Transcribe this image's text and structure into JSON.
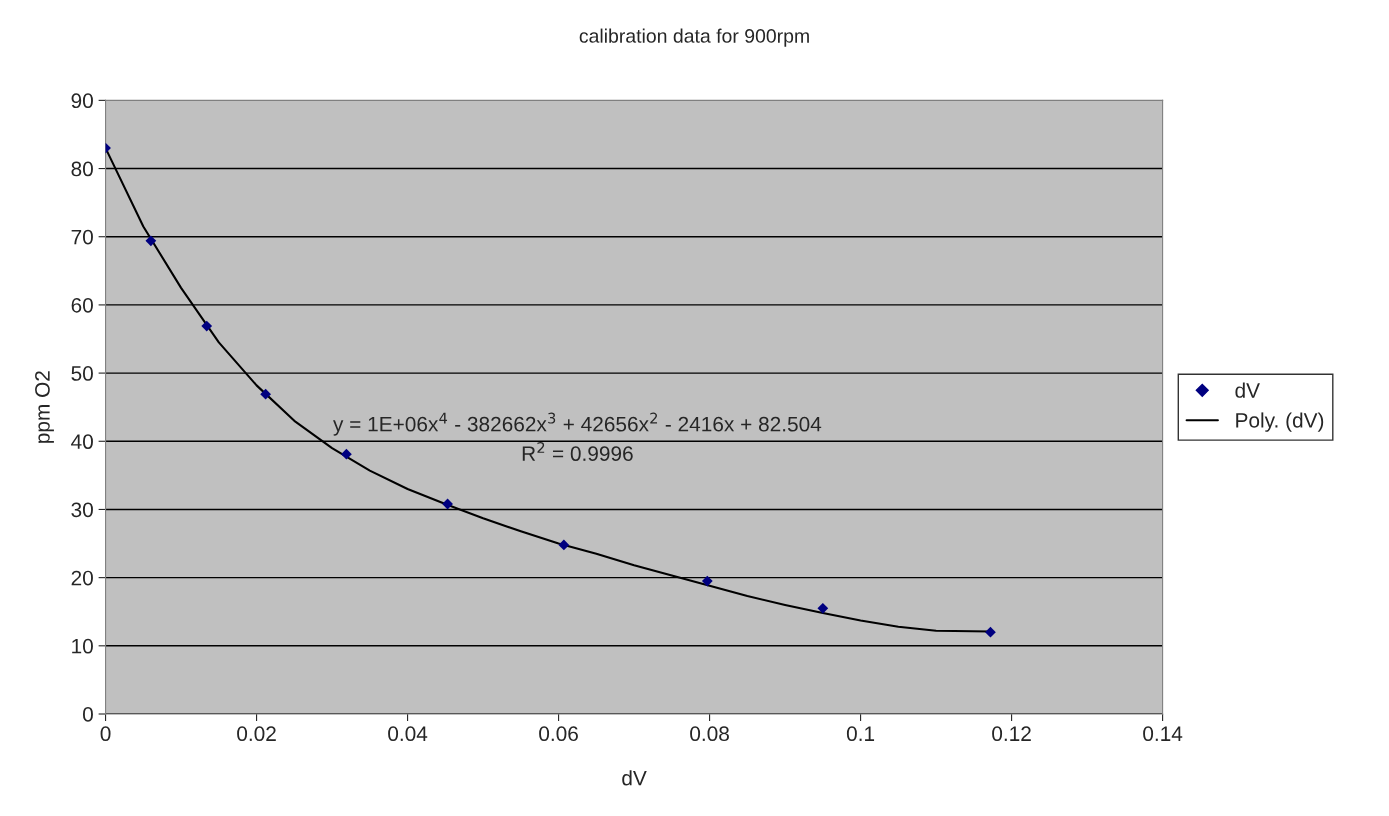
{
  "chart_data": {
    "type": "scatter",
    "title": "calibration data for 900rpm",
    "xlabel": "dV",
    "ylabel": "ppm O2",
    "xlim": [
      0,
      0.14
    ],
    "xticks": [
      0,
      0.02,
      0.04,
      0.06,
      0.08,
      0.1,
      0.12,
      0.14
    ],
    "ylim": [
      0,
      90
    ],
    "yticks": [
      0,
      10,
      20,
      30,
      40,
      50,
      60,
      70,
      80,
      90
    ],
    "grid": "y",
    "legend": "right",
    "annotations": [
      {
        "text": "y = 1E+06x$^{4}$ - 382662x$^{3}$ + 42656x$^{2}$ - 2416x + 82.504"
      },
      {
        "text": "R$^{2}$ = 0.9996"
      }
    ],
    "series": [
      {
        "name": "dV",
        "color": "#000080",
        "marker": "diamond",
        "x": [
          0,
          0.006,
          0.0134,
          0.0212,
          0.0319,
          0.0453,
          0.0607,
          0.0797,
          0.095,
          0.1172
        ],
        "values": [
          83.0,
          69.4,
          56.9,
          46.9,
          38.1,
          30.8,
          24.8,
          19.5,
          15.5,
          12.0
        ]
      },
      {
        "name": "Poly. (dV)",
        "type": "line",
        "color": "#000000",
        "line_style": "solid",
        "x": [
          0,
          0.005,
          0.01,
          0.015,
          0.02,
          0.025,
          0.03,
          0.035,
          0.04,
          0.045,
          0.05,
          0.055,
          0.06,
          0.065,
          0.07,
          0.075,
          0.08,
          0.085,
          0.09,
          0.095,
          0.1,
          0.105,
          0.11,
          0.1172
        ],
        "values": [
          83,
          71.5,
          62.5,
          54.5,
          48.2,
          43,
          39,
          35.7,
          33,
          30.8,
          28.7,
          26.8,
          25,
          23.5,
          21.8,
          20.3,
          18.8,
          17.3,
          16,
          14.8,
          13.7,
          12.8,
          12.2,
          12.1
        ]
      }
    ]
  }
}
